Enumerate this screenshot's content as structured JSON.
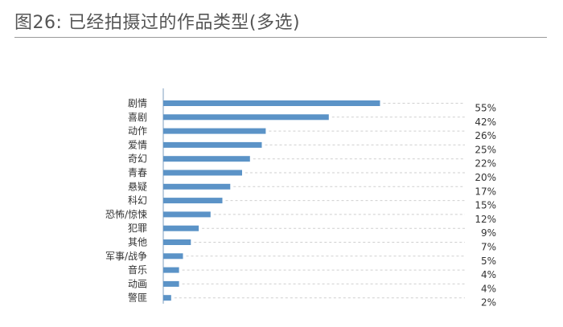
{
  "header": {
    "title": "图26: 已经拍摄过的作品类型(多选)"
  },
  "colors": {
    "bar": "#5b93c7",
    "axis": "#7f9fbf",
    "guide": "#cfcfcf",
    "rule": "#9a9a9a"
  },
  "chart_data": {
    "type": "bar",
    "orientation": "horizontal",
    "title": "图26: 已经拍摄过的作品类型(多选)",
    "xlabel": "",
    "ylabel": "",
    "xlim": [
      0,
      100
    ],
    "grid": false,
    "legend": "none",
    "categories": [
      "剧情",
      "喜剧",
      "动作",
      "爱情",
      "奇幻",
      "青春",
      "悬疑",
      "科幻",
      "恐怖/惊悚",
      "犯罪",
      "其他",
      "军事/战争",
      "音乐",
      "动画",
      "警匪"
    ],
    "values": [
      55,
      42,
      26,
      25,
      22,
      20,
      17,
      15,
      12,
      9,
      7,
      5,
      4,
      4,
      2
    ],
    "value_labels": [
      "55%",
      "42%",
      "26%",
      "25%",
      "22%",
      "20%",
      "17%",
      "15%",
      "12%",
      "9%",
      "7%",
      "5%",
      "4%",
      "4%",
      "2%"
    ]
  }
}
